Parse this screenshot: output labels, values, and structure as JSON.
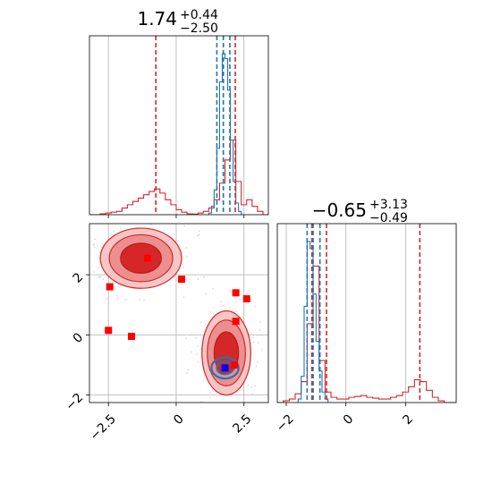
{
  "chart_data": [
    {
      "type": "histogram",
      "panel": "top-left",
      "title": {
        "value": "1.74",
        "upper": "+0.44",
        "lower": "−2.50"
      },
      "xlim": [
        -3.2,
        3.4
      ],
      "grid": true,
      "x_ticks": [
        -2.5,
        0.0,
        2.5
      ],
      "series": [
        {
          "color": "#d62728",
          "bins_x": [
            -3.2,
            -3.0,
            -2.8,
            -2.6,
            -2.4,
            -2.2,
            -2.0,
            -1.8,
            -1.6,
            -1.4,
            -1.2,
            -1.0,
            -0.8,
            -0.6,
            -0.4,
            -0.2,
            0.0,
            0.2,
            0.4,
            0.6,
            0.8,
            1.0,
            1.2,
            1.4,
            1.6,
            1.8,
            2.0,
            2.2,
            2.4,
            2.6,
            2.8,
            3.0,
            3.2,
            3.4
          ],
          "counts": [
            0.0,
            0.0,
            0.005,
            0.01,
            0.015,
            0.02,
            0.04,
            0.06,
            0.08,
            0.1,
            0.12,
            0.14,
            0.155,
            0.13,
            0.09,
            0.06,
            0.03,
            0.015,
            0.005,
            0.003,
            0.01,
            0.02,
            0.04,
            0.09,
            0.19,
            0.33,
            0.45,
            0.2,
            0.06,
            0.09,
            0.05,
            0.02,
            0.0
          ]
        },
        {
          "color": "#1f77b4",
          "bins_x": [
            1.2,
            1.3,
            1.4,
            1.5,
            1.6,
            1.7,
            1.8,
            1.9,
            2.0,
            2.1,
            2.2,
            2.3,
            2.4
          ],
          "counts": [
            0.01,
            0.05,
            0.15,
            0.4,
            0.8,
            0.97,
            0.94,
            0.75,
            0.45,
            0.2,
            0.07,
            0.02
          ]
        }
      ],
      "quantile_lines": [
        {
          "color": "#d62728",
          "x": [
            -0.75,
            1.74,
            2.18
          ]
        },
        {
          "color": "#1f77b4",
          "x": [
            1.5,
            1.74,
            1.98
          ]
        }
      ]
    },
    {
      "type": "contour",
      "panel": "bottom-left",
      "xlim": [
        -3.2,
        3.4
      ],
      "ylim": [
        -2.25,
        3.7
      ],
      "grid": true,
      "x_ticks": [
        -2.5,
        0.0,
        2.5
      ],
      "y_ticks": [
        -2,
        0,
        2
      ],
      "red_regions": [
        {
          "cx": -1.3,
          "cy": 2.55,
          "rx": 1.5,
          "ry": 1.0
        },
        {
          "cx": 1.85,
          "cy": -0.6,
          "rx": 0.9,
          "ry": 1.4
        }
      ],
      "blue_region": {
        "cx": 1.8,
        "cy": -1.1,
        "rx": 0.5,
        "ry": 0.35
      },
      "red_square_markers": [
        {
          "x": -1.05,
          "y": 2.55
        },
        {
          "x": 0.2,
          "y": 1.85
        },
        {
          "x": -2.45,
          "y": 1.6
        },
        {
          "x": -2.5,
          "y": 0.15
        },
        {
          "x": -1.65,
          "y": -0.05
        },
        {
          "x": 2.2,
          "y": 1.4
        },
        {
          "x": 2.6,
          "y": 1.2
        },
        {
          "x": 2.2,
          "y": 0.45
        },
        {
          "x": 2.15,
          "y": -1.0
        }
      ],
      "blue_square_marker": {
        "x": 1.8,
        "y": -1.1
      }
    },
    {
      "type": "histogram",
      "panel": "bottom-right",
      "title": {
        "value": "−0.65",
        "upper": "+3.13",
        "lower": "−0.49"
      },
      "xlim": [
        -2.3,
        3.7
      ],
      "grid": true,
      "x_ticks": [
        -2,
        0,
        2
      ],
      "series": [
        {
          "color": "#d62728",
          "bins_x": [
            -2.3,
            -2.1,
            -1.9,
            -1.7,
            -1.5,
            -1.3,
            -1.1,
            -0.9,
            -0.7,
            -0.5,
            -0.3,
            -0.1,
            0.1,
            0.3,
            0.5,
            0.7,
            0.9,
            1.1,
            1.3,
            1.5,
            1.7,
            1.9,
            2.1,
            2.3,
            2.5,
            2.7,
            2.9,
            3.1,
            3.3,
            3.5,
            3.7
          ],
          "counts": [
            0.0,
            0.01,
            0.02,
            0.05,
            0.12,
            0.45,
            0.78,
            0.24,
            0.06,
            0.03,
            0.02,
            0.02,
            0.03,
            0.035,
            0.04,
            0.03,
            0.025,
            0.02,
            0.02,
            0.03,
            0.04,
            0.06,
            0.09,
            0.13,
            0.12,
            0.07,
            0.03,
            0.01,
            0.0,
            0.0
          ]
        },
        {
          "color": "#1f77b4",
          "bins_x": [
            -1.6,
            -1.5,
            -1.4,
            -1.3,
            -1.2,
            -1.1,
            -1.0,
            -0.9,
            -0.8,
            -0.7,
            -0.6
          ],
          "counts": [
            0.02,
            0.15,
            0.55,
            0.92,
            0.88,
            0.62,
            0.35,
            0.18,
            0.06,
            0.02
          ]
        }
      ],
      "quantile_lines": [
        {
          "color": "#d62728",
          "x": [
            -1.14,
            -0.65,
            2.48
          ]
        },
        {
          "color": "#1f77b4",
          "x": [
            -1.3,
            -1.1,
            -0.87
          ]
        }
      ]
    }
  ]
}
